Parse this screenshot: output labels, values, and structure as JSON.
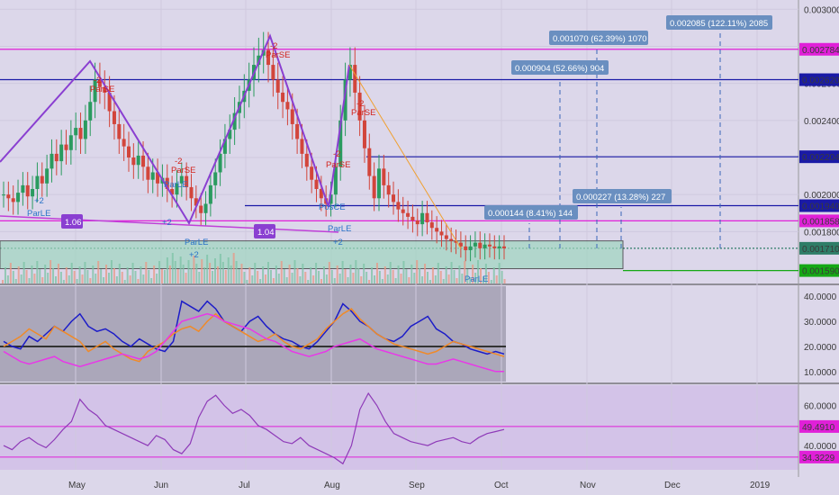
{
  "chart_data": [
    {
      "type": "candlestick",
      "title": "",
      "x_ticks": [
        "May",
        "Jun",
        "Jul",
        "Aug",
        "Sep",
        "Oct",
        "Nov",
        "Dec",
        "2019"
      ],
      "y_ticks": [
        "0.003000",
        "0.002800",
        "0.002600",
        "0.002400",
        "0.002200",
        "0.002000",
        "0.001800"
      ],
      "ylim": [
        0.00152,
        0.00305
      ],
      "price_markers": [
        {
          "value": "0.002784",
          "color": "#e020d8"
        },
        {
          "value": "0.002620",
          "color": "#1a1aa6"
        },
        {
          "value": "0.002204",
          "color": "#1a1aa6"
        },
        {
          "value": "0.001940",
          "color": "#1a1aa6"
        },
        {
          "value": "0.001858",
          "color": "#e020d8"
        },
        {
          "value": "0.001710",
          "color": "#2e7d67"
        },
        {
          "value": "0.001590",
          "color": "#15a815"
        }
      ],
      "close_series": [
        0.002,
        0.00198,
        0.00196,
        0.00201,
        0.00205,
        0.00199,
        0.00203,
        0.0021,
        0.00206,
        0.00214,
        0.00222,
        0.00218,
        0.00227,
        0.00224,
        0.00232,
        0.00236,
        0.0023,
        0.0024,
        0.0025,
        0.00262,
        0.00258,
        0.00255,
        0.00245,
        0.00238,
        0.0023,
        0.00226,
        0.0022,
        0.00216,
        0.00221,
        0.00215,
        0.00208,
        0.00212,
        0.00206,
        0.00209,
        0.00203,
        0.002,
        0.00206,
        0.0021,
        0.00204,
        0.00198,
        0.00194,
        0.0019,
        0.00195,
        0.00205,
        0.00212,
        0.00222,
        0.0023,
        0.00235,
        0.00244,
        0.0025,
        0.00256,
        0.00262,
        0.0027,
        0.00275,
        0.00278,
        0.0027,
        0.00262,
        0.00255,
        0.0025,
        0.00246,
        0.00238,
        0.0023,
        0.00222,
        0.00215,
        0.00208,
        0.00203,
        0.00198,
        0.00195,
        0.002,
        0.00215,
        0.0024,
        0.00262,
        0.0027,
        0.00255,
        0.0024,
        0.00225,
        0.0021,
        0.00198,
        0.00214,
        0.00205,
        0.002,
        0.00196,
        0.00192,
        0.0019,
        0.00188,
        0.00186,
        0.00184,
        0.0019,
        0.00185,
        0.00182,
        0.0018,
        0.00178,
        0.00176,
        0.00175,
        0.00174,
        0.00172,
        0.0017,
        0.00172,
        0.00174,
        0.00171,
        0.00173,
        0.00172,
        0.00171,
        0.00172,
        0.00171
      ],
      "annotations": [
        {
          "text": "0.002085 (122.11%) 2085"
        },
        {
          "text": "0.001070 (62.39%) 1070"
        },
        {
          "text": "0.000904 (52.66%) 904"
        },
        {
          "text": "0.000227 (13.28%) 227"
        },
        {
          "text": "0.000144 (8.41%) 144"
        },
        {
          "text": "1.06"
        },
        {
          "text": "1.04"
        },
        {
          "text": "ParLE"
        },
        {
          "text": "ParSE"
        },
        {
          "text": "+2"
        },
        {
          "text": "-2"
        },
        {
          "text": "PosCE"
        }
      ]
    },
    {
      "type": "line",
      "title": "",
      "y_ticks": [
        "40.0000",
        "30.0000",
        "20.0000",
        "10.0000"
      ],
      "ylim": [
        6,
        44
      ],
      "series": [
        {
          "color": "#1c1cc8",
          "values": [
            22,
            20,
            19,
            24,
            22,
            25,
            28,
            26,
            30,
            33,
            28,
            26,
            27,
            25,
            22,
            20,
            23,
            21,
            19,
            18,
            22,
            38,
            36,
            34,
            38,
            35,
            30,
            28,
            26,
            30,
            32,
            28,
            25,
            23,
            22,
            20,
            19,
            22,
            26,
            30,
            37,
            34,
            30,
            28,
            25,
            23,
            22,
            24,
            28,
            30,
            32,
            27,
            25,
            22,
            21,
            19,
            18,
            17,
            18,
            17
          ]
        },
        {
          "color": "#f08a28",
          "values": [
            20,
            22,
            24,
            27,
            25,
            23,
            28,
            26,
            24,
            22,
            18,
            20,
            22,
            19,
            17,
            15,
            14,
            18,
            20,
            22,
            25,
            27,
            28,
            26,
            30,
            33,
            30,
            28,
            26,
            24,
            22,
            23,
            25,
            22,
            20,
            19,
            21,
            23,
            27,
            30,
            33,
            35,
            31,
            28,
            25,
            23,
            21,
            20,
            19,
            18,
            17,
            18,
            20,
            22,
            21,
            20,
            19,
            18,
            17,
            16
          ]
        },
        {
          "color": "#e838e8",
          "values": [
            18,
            16,
            14,
            13,
            14,
            15,
            16,
            14,
            13,
            12,
            13,
            14,
            15,
            16,
            17,
            16,
            15,
            16,
            18,
            22,
            26,
            30,
            31,
            32,
            33,
            32,
            30,
            29,
            28,
            27,
            25,
            23,
            22,
            20,
            18,
            17,
            16,
            17,
            18,
            20,
            21,
            22,
            23,
            21,
            19,
            18,
            17,
            16,
            15,
            14,
            13,
            13,
            14,
            15,
            14,
            13,
            12,
            11,
            10,
            10
          ]
        }
      ]
    },
    {
      "type": "line",
      "title": "",
      "y_ticks": [
        "60.0000",
        "40.0000"
      ],
      "ylim": [
        28,
        70
      ],
      "price_markers": [
        {
          "value": "49.4910",
          "color": "#e020d8"
        },
        {
          "value": "34.3229",
          "color": "#e020d8"
        }
      ],
      "series": [
        {
          "color": "#8e3ab8",
          "values": [
            40,
            38,
            42,
            44,
            41,
            39,
            43,
            48,
            52,
            63,
            58,
            55,
            50,
            48,
            46,
            44,
            42,
            40,
            45,
            43,
            38,
            36,
            41,
            54,
            62,
            65,
            60,
            56,
            58,
            55,
            50,
            48,
            45,
            42,
            41,
            44,
            40,
            38,
            36,
            34,
            31,
            40,
            58,
            66,
            60,
            52,
            46,
            44,
            42,
            41,
            40,
            42,
            43,
            44,
            42,
            41,
            44,
            46,
            47,
            48
          ]
        }
      ]
    }
  ]
}
